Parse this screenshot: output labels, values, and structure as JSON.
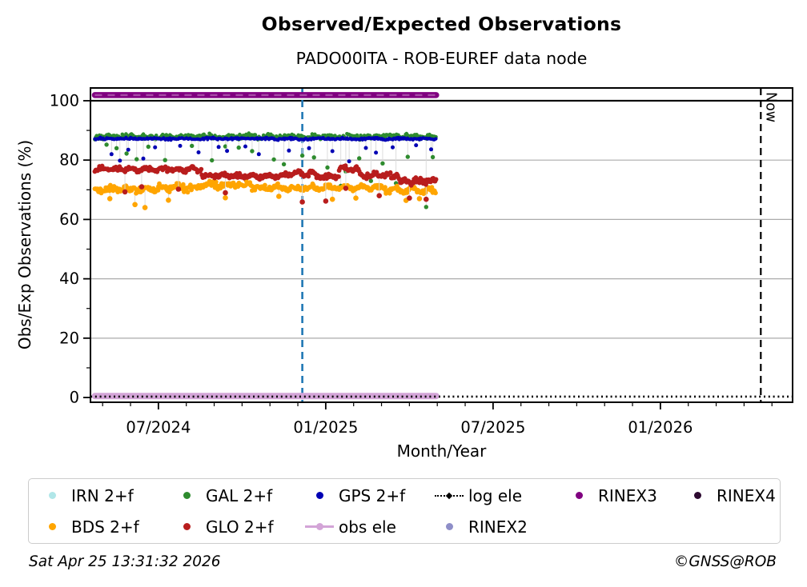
{
  "header": {
    "title": "Observed/Expected Observations",
    "subtitle": "PADO00ITA - ROB-EUREF data node"
  },
  "footer": {
    "timestamp": "Sat Apr 25 13:31:32 2026",
    "credit": "©GNSS@ROB"
  },
  "axes": {
    "xlabel": "Month/Year",
    "ylabel": "Obs/Exp Observations (%)",
    "x_range": [
      2024.297,
      2026.395
    ],
    "y_range": [
      -1.6,
      104.3
    ],
    "x_ticks": [
      {
        "value": 2024.5,
        "label": "07/2024"
      },
      {
        "value": 2025.0,
        "label": "01/2025"
      },
      {
        "value": 2025.5,
        "label": "07/2025"
      },
      {
        "value": 2026.0,
        "label": "01/2026"
      }
    ],
    "x_minor_step": 0.0833333,
    "y_ticks": [
      0,
      20,
      40,
      60,
      80,
      100
    ],
    "y_minor_step": 10,
    "grid_y": [
      20,
      40,
      60,
      80
    ],
    "grid_color": "#ababab"
  },
  "annotations": {
    "reference_line_100": {
      "y": 100,
      "color": "#000000",
      "width": 2.2
    },
    "event_line": {
      "x": 2024.93,
      "color": "#1f77b4",
      "style": "dashed",
      "width": 2.6
    },
    "now_line": {
      "x": 2026.3,
      "label": "Now",
      "color": "#000000",
      "style": "dashed",
      "width": 2.2
    }
  },
  "legend": {
    "columns": [
      [
        {
          "label": "IRN 2+f",
          "color": "#b0e6e8",
          "marker": "dot"
        },
        {
          "label": "BDS 2+f",
          "color": "#ffa500",
          "marker": "dot"
        }
      ],
      [
        {
          "label": "GAL 2+f",
          "color": "#2e8b2e",
          "marker": "dot"
        },
        {
          "label": "GLO 2+f",
          "color": "#b81d1d",
          "marker": "dot"
        }
      ],
      [
        {
          "label": "GPS 2+f",
          "color": "#0000b4",
          "marker": "dot"
        },
        {
          "label": "obs ele",
          "color": "#d3a4d7",
          "marker": "line-dot"
        }
      ],
      [
        {
          "label": "log ele",
          "color": "#000000",
          "marker": "dotted-line"
        },
        {
          "label": "RINEX2",
          "color": "#8e8ec8",
          "marker": "dot"
        }
      ],
      [
        {
          "label": "RINEX3",
          "color": "#800080",
          "marker": "dot"
        }
      ],
      [
        {
          "label": "RINEX4",
          "color": "#2d0a31",
          "marker": "dot"
        }
      ]
    ]
  },
  "chart_data": {
    "type": "scatter",
    "title": "Observed/Expected Observations",
    "subtitle": "PADO00ITA - ROB-EUREF data node",
    "xlabel": "Month/Year",
    "ylabel": "Obs/Exp Observations (%)",
    "x_axis_unit": "decimal_year",
    "data_span": {
      "start": 2024.31,
      "end": 2025.33,
      "sampling_days": 1
    },
    "series": [
      {
        "name": "RINEX3",
        "style": "thick-line",
        "color": "#800080",
        "y": 101.9,
        "x0": 2024.31,
        "x1": 2025.33,
        "width": 7.5,
        "overlay_dashes": true
      },
      {
        "name": "obs ele",
        "style": "thick-line",
        "color": "#d3a4d7",
        "y": 0.5,
        "x0": 2024.31,
        "x1": 2025.33,
        "width": 8,
        "overlay_dashes": false
      },
      {
        "name": "log ele",
        "style": "dotted-line",
        "color": "#000000",
        "y": 0.3,
        "x0": 2024.297,
        "x1": 2026.395,
        "width": 2.6
      },
      {
        "name": "GAL 2+f",
        "style": "band",
        "color": "#2e8b2e",
        "r": 2.3,
        "wave": {
          "amp": 0.25,
          "period": 0.06
        },
        "segments": [
          {
            "x0": 2024.31,
            "x1": 2025.33,
            "y": 87.9,
            "jitter": 1.0
          }
        ],
        "outliers": [
          [
            2024.345,
            85.2
          ],
          [
            2024.375,
            84.0
          ],
          [
            2024.405,
            82.2
          ],
          [
            2024.435,
            80.3
          ],
          [
            2024.47,
            84.5
          ],
          [
            2024.52,
            80.0
          ],
          [
            2024.6,
            84.8
          ],
          [
            2024.66,
            79.9
          ],
          [
            2024.7,
            84.6
          ],
          [
            2024.74,
            84.2
          ],
          [
            2024.78,
            83.0
          ],
          [
            2024.845,
            80.2
          ],
          [
            2024.875,
            78.6
          ],
          [
            2024.93,
            81.5
          ],
          [
            2024.965,
            80.9
          ],
          [
            2025.005,
            77.5
          ],
          [
            2025.045,
            71.3
          ],
          [
            2025.06,
            76.2
          ],
          [
            2025.1,
            80.6
          ],
          [
            2025.135,
            73.0
          ],
          [
            2025.17,
            78.9
          ],
          [
            2025.21,
            72.2
          ],
          [
            2025.245,
            81.1
          ],
          [
            2025.3,
            64.2
          ],
          [
            2025.32,
            81.0
          ]
        ]
      },
      {
        "name": "GPS 2+f",
        "style": "band",
        "color": "#0000b4",
        "r": 2.1,
        "wave": {
          "amp": 0.12,
          "period": 0.08
        },
        "segments": [
          {
            "x0": 2024.31,
            "x1": 2025.33,
            "y": 87.2,
            "jitter": 0.45
          }
        ],
        "outliers": [
          [
            2024.36,
            82.0
          ],
          [
            2024.385,
            79.8
          ],
          [
            2024.41,
            83.5
          ],
          [
            2024.455,
            80.5
          ],
          [
            2024.49,
            84.3
          ],
          [
            2024.565,
            84.8
          ],
          [
            2024.62,
            82.6
          ],
          [
            2024.68,
            84.4
          ],
          [
            2024.705,
            83.1
          ],
          [
            2024.76,
            84.6
          ],
          [
            2024.8,
            82.0
          ],
          [
            2024.89,
            83.2
          ],
          [
            2024.95,
            84.0
          ],
          [
            2025.02,
            83.0
          ],
          [
            2025.07,
            79.6
          ],
          [
            2025.12,
            84.1
          ],
          [
            2025.15,
            82.5
          ],
          [
            2025.2,
            84.3
          ],
          [
            2025.27,
            85.0
          ],
          [
            2025.315,
            83.6
          ]
        ]
      },
      {
        "name": "BDS 2+f",
        "style": "band",
        "color": "#ffa500",
        "r": 2.9,
        "wave": {
          "amp": 0.5,
          "period": 0.05
        },
        "segments": [
          {
            "x0": 2024.31,
            "x1": 2024.5,
            "y": 70.0,
            "jitter": 1.2
          },
          {
            "x0": 2024.5,
            "x1": 2024.62,
            "y": 70.8,
            "jitter": 1.4
          },
          {
            "x0": 2024.62,
            "x1": 2024.78,
            "y": 71.6,
            "jitter": 1.2
          },
          {
            "x0": 2024.78,
            "x1": 2025.18,
            "y": 70.7,
            "jitter": 1.0
          },
          {
            "x0": 2025.18,
            "x1": 2025.33,
            "y": 69.8,
            "jitter": 1.1
          }
        ],
        "outliers": [
          [
            2024.355,
            67.0
          ],
          [
            2024.43,
            65.0
          ],
          [
            2024.46,
            64.0
          ],
          [
            2024.53,
            66.5
          ],
          [
            2024.7,
            67.3
          ],
          [
            2024.86,
            67.8
          ],
          [
            2025.02,
            66.8
          ],
          [
            2025.09,
            67.2
          ],
          [
            2025.24,
            66.4
          ],
          [
            2025.28,
            67.0
          ]
        ]
      },
      {
        "name": "GLO 2+f",
        "style": "band",
        "color": "#b81d1d",
        "r": 2.9,
        "wave": {
          "amp": 0.45,
          "period": 0.045
        },
        "segments": [
          {
            "x0": 2024.31,
            "x1": 2024.63,
            "y": 76.9,
            "jitter": 0.9
          },
          {
            "x0": 2024.63,
            "x1": 2024.88,
            "y": 74.6,
            "jitter": 1.0
          },
          {
            "x0": 2024.88,
            "x1": 2024.97,
            "y": 75.4,
            "jitter": 1.0
          },
          {
            "x0": 2024.97,
            "x1": 2025.04,
            "y": 74.3,
            "jitter": 1.0
          },
          {
            "x0": 2025.04,
            "x1": 2025.1,
            "y": 77.2,
            "jitter": 1.4
          },
          {
            "x0": 2025.1,
            "x1": 2025.22,
            "y": 74.9,
            "jitter": 1.2
          },
          {
            "x0": 2025.22,
            "x1": 2025.33,
            "y": 72.8,
            "jitter": 1.3
          }
        ],
        "outliers": [
          [
            2024.4,
            69.3
          ],
          [
            2024.45,
            71.0
          ],
          [
            2024.56,
            70.2
          ],
          [
            2024.7,
            69.0
          ],
          [
            2024.93,
            65.9
          ],
          [
            2025.0,
            66.2
          ],
          [
            2025.06,
            70.5
          ],
          [
            2025.16,
            68.0
          ],
          [
            2025.25,
            67.2
          ],
          [
            2025.3,
            66.8
          ]
        ]
      },
      {
        "name": "IRN 2+f",
        "style": "legend-only",
        "color": "#b0e6e8"
      },
      {
        "name": "RINEX2",
        "style": "legend-only",
        "color": "#8e8ec8"
      },
      {
        "name": "RINEX4",
        "style": "legend-only",
        "color": "#2d0a31"
      }
    ]
  }
}
